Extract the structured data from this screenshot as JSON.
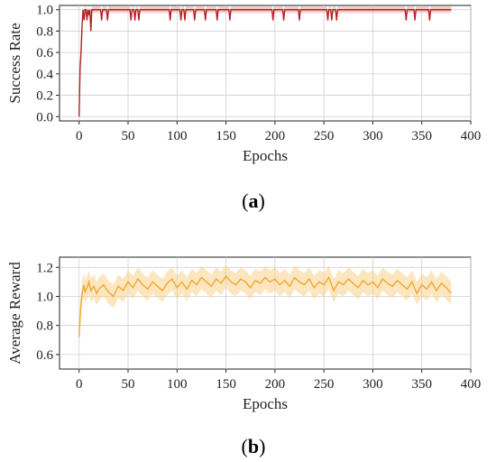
{
  "chart_data": [
    {
      "type": "line",
      "caption_open": "(",
      "caption_letter": "a",
      "caption_close": ")",
      "xlabel": "Epochs",
      "ylabel": "Success Rate",
      "xlim": [
        -20,
        400
      ],
      "ylim": [
        -0.04,
        1.04
      ],
      "xticks": [
        0,
        50,
        100,
        150,
        200,
        250,
        300,
        350,
        400
      ],
      "yticks": [
        0.0,
        0.2,
        0.4,
        0.6,
        0.8,
        1.0
      ],
      "ytick_labels": [
        "0.0",
        "0.2",
        "0.4",
        "0.6",
        "0.8",
        "1.0"
      ],
      "grid": true,
      "line_color": "#b22222",
      "band_color": "#e8a0a0",
      "series": [
        {
          "x": [
            0,
            1,
            2,
            3,
            4,
            5,
            6,
            7,
            8,
            9,
            10,
            11,
            12,
            13,
            14,
            15,
            20,
            22,
            23,
            24,
            26,
            28,
            29,
            30,
            35,
            50,
            52,
            53,
            54,
            56,
            57,
            58,
            60,
            61,
            62,
            64,
            70,
            90,
            92,
            93,
            94,
            100,
            103,
            104,
            105,
            107,
            108,
            109,
            115,
            117,
            118,
            119,
            125,
            128,
            129,
            130,
            135,
            140,
            141,
            142,
            150,
            153,
            154,
            155,
            160,
            195,
            197,
            198,
            199,
            205,
            208,
            209,
            210,
            212,
            215,
            222,
            224,
            225,
            226,
            230,
            250,
            253,
            254,
            255,
            257,
            258,
            259,
            260,
            262,
            263,
            264,
            265,
            270,
            330,
            333,
            334,
            335,
            340,
            342,
            343,
            344,
            350,
            357,
            358,
            359,
            360,
            380
          ],
          "values": [
            0.0,
            0.45,
            0.6,
            0.85,
            1.0,
            0.9,
            1.0,
            1.0,
            0.9,
            1.0,
            0.95,
            1.0,
            0.8,
            1.0,
            1.0,
            1.0,
            1.0,
            1.0,
            0.9,
            1.0,
            1.0,
            1.0,
            0.9,
            1.0,
            1.0,
            1.0,
            1.0,
            0.9,
            1.0,
            1.0,
            0.9,
            1.0,
            1.0,
            0.9,
            1.0,
            1.0,
            1.0,
            1.0,
            1.0,
            0.9,
            1.0,
            1.0,
            1.0,
            0.9,
            1.0,
            1.0,
            0.9,
            1.0,
            1.0,
            1.0,
            0.9,
            1.0,
            1.0,
            1.0,
            0.9,
            1.0,
            1.0,
            1.0,
            0.9,
            1.0,
            1.0,
            1.0,
            0.9,
            1.0,
            1.0,
            1.0,
            1.0,
            0.9,
            1.0,
            1.0,
            1.0,
            0.9,
            1.0,
            1.0,
            1.0,
            1.0,
            1.0,
            0.9,
            1.0,
            1.0,
            1.0,
            1.0,
            0.9,
            1.0,
            1.0,
            0.9,
            1.0,
            1.0,
            1.0,
            0.9,
            1.0,
            1.0,
            1.0,
            1.0,
            1.0,
            0.9,
            1.0,
            1.0,
            1.0,
            0.9,
            1.0,
            1.0,
            1.0,
            0.9,
            1.0,
            1.0,
            1.0
          ]
        }
      ]
    },
    {
      "type": "line",
      "caption_open": "(",
      "caption_letter": "b",
      "caption_close": ")",
      "xlabel": "Epochs",
      "ylabel": "Average Reward",
      "xlim": [
        -20,
        400
      ],
      "ylim": [
        0.5,
        1.27
      ],
      "xticks": [
        0,
        50,
        100,
        150,
        200,
        250,
        300,
        350,
        400
      ],
      "yticks": [
        0.6,
        0.8,
        1.0,
        1.2
      ],
      "ytick_labels": [
        "0.6",
        "0.8",
        "1.0",
        "1.2"
      ],
      "grid": true,
      "line_color": "#f0a830",
      "band_color": "#f8d28a",
      "series": [
        {
          "x": [
            0,
            1,
            2,
            3,
            4,
            5,
            6,
            8,
            10,
            12,
            15,
            18,
            20,
            25,
            30,
            35,
            40,
            45,
            50,
            55,
            60,
            65,
            70,
            75,
            80,
            85,
            90,
            95,
            100,
            105,
            110,
            115,
            120,
            125,
            130,
            135,
            140,
            145,
            150,
            155,
            160,
            165,
            170,
            175,
            180,
            185,
            190,
            195,
            200,
            205,
            210,
            215,
            220,
            225,
            230,
            235,
            240,
            245,
            250,
            255,
            260,
            265,
            270,
            275,
            280,
            285,
            290,
            295,
            300,
            305,
            310,
            315,
            320,
            325,
            330,
            335,
            340,
            345,
            350,
            355,
            360,
            365,
            370,
            375,
            380
          ],
          "values": [
            0.72,
            0.85,
            0.95,
            1.02,
            1.05,
            1.08,
            1.03,
            1.06,
            1.1,
            1.04,
            1.07,
            1.02,
            1.05,
            1.08,
            1.03,
            1.0,
            1.07,
            1.04,
            1.1,
            1.06,
            1.12,
            1.08,
            1.05,
            1.1,
            1.07,
            1.04,
            1.09,
            1.12,
            1.06,
            1.1,
            1.05,
            1.11,
            1.08,
            1.13,
            1.1,
            1.07,
            1.12,
            1.09,
            1.14,
            1.1,
            1.08,
            1.12,
            1.1,
            1.06,
            1.11,
            1.09,
            1.13,
            1.1,
            1.12,
            1.08,
            1.11,
            1.07,
            1.13,
            1.1,
            1.08,
            1.12,
            1.06,
            1.1,
            1.08,
            1.13,
            1.04,
            1.1,
            1.08,
            1.12,
            1.09,
            1.06,
            1.11,
            1.08,
            1.1,
            1.06,
            1.12,
            1.09,
            1.07,
            1.11,
            1.08,
            1.05,
            1.1,
            1.02,
            1.08,
            1.05,
            1.1,
            1.04,
            1.09,
            1.06,
            1.02
          ]
        }
      ]
    }
  ]
}
